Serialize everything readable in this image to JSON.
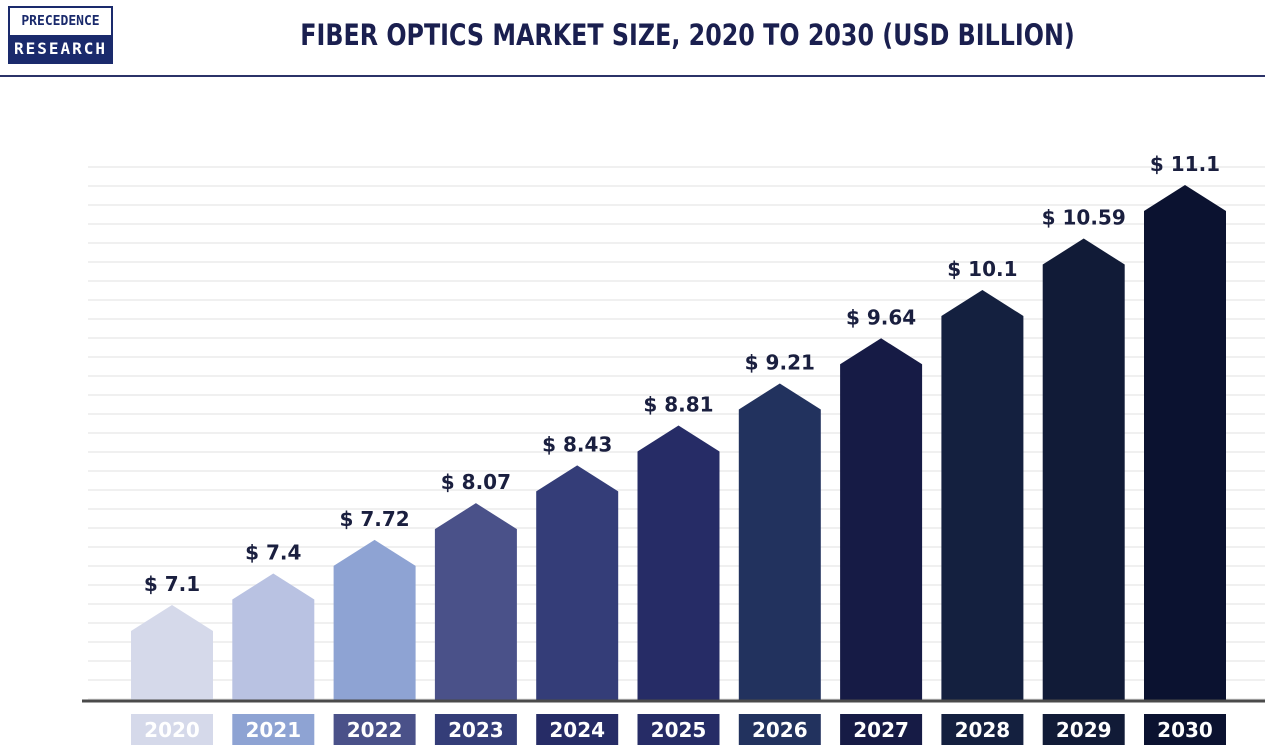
{
  "logo": {
    "line1": "PRECEDENCE",
    "line2": "RESEARCH"
  },
  "chart_data": {
    "type": "bar",
    "title": "FIBER OPTICS MARKET SIZE, 2020 TO 2030 (USD BILLION)",
    "xlabel": "",
    "ylabel": "",
    "categories": [
      "2020",
      "2021",
      "2022",
      "2023",
      "2024",
      "2025",
      "2026",
      "2027",
      "2028",
      "2029",
      "2030"
    ],
    "values": [
      7.1,
      7.4,
      7.72,
      8.07,
      8.43,
      8.81,
      9.21,
      9.64,
      10.1,
      10.59,
      11.1
    ],
    "labels": [
      "$ 7.1",
      "$ 7.4",
      "$ 7.72",
      "$ 8.07",
      "$ 8.43",
      "$ 8.81",
      "$ 9.21",
      "$ 9.64",
      "$ 10.1",
      "$ 10.59",
      "$ 11.1"
    ],
    "bar_colors": [
      "#d5d9ea",
      "#b9c2e2",
      "#8ea3d3",
      "#4a5189",
      "#343d78",
      "#262c66",
      "#22325e",
      "#161b45",
      "#14203f",
      "#111b37",
      "#0b1230"
    ],
    "year_box_colors": [
      "#d5d9ea",
      "#8ea3d3",
      "#4a5189",
      "#343d78",
      "#262c66",
      "#262c66",
      "#22325e",
      "#161b45",
      "#14203f",
      "#111b37",
      "#0b1230"
    ],
    "grid": true,
    "legend": "none"
  }
}
